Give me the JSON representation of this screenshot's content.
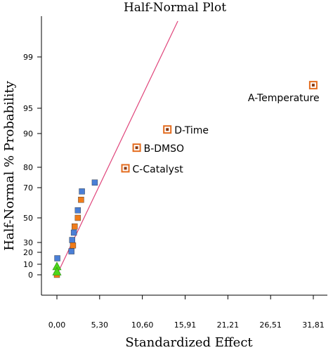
{
  "chart_data": {
    "type": "scatter",
    "title": "Half-Normal Plot",
    "xlabel": "Standardized Effect",
    "ylabel": "Half-Normal % Probability",
    "xlim": [
      -1.5,
      33.5
    ],
    "x_ticks": [
      "0,00",
      "5,30",
      "10,60",
      "15,91",
      "21,21",
      "26,51",
      "31,81"
    ],
    "x_tick_values": [
      0,
      5.3,
      10.6,
      15.91,
      21.21,
      26.51,
      31.81
    ],
    "y_scale": "half-normal probability",
    "y_ticks": [
      "0",
      "10",
      "20",
      "30",
      "50",
      "70",
      "80",
      "90",
      "95",
      "99"
    ],
    "y_tick_values": [
      0,
      10,
      20,
      30,
      50,
      70,
      80,
      90,
      95,
      99
    ],
    "series": [
      {
        "marker": "labeled-square",
        "color": "#e46c1e",
        "points": [
          {
            "x": 31.8,
            "y": 96.8,
            "label": "A-Temperature"
          },
          {
            "x": 13.7,
            "y": 90.8,
            "label": "D-Time"
          },
          {
            "x": 9.9,
            "y": 85.8,
            "label": "B-DMSO"
          },
          {
            "x": 8.5,
            "y": 79.5,
            "label": "C-Catalyst"
          }
        ]
      },
      {
        "marker": "square",
        "color": "#4a7fd6",
        "points": [
          {
            "x": 4.7,
            "y": 72.5
          },
          {
            "x": 3.1,
            "y": 67.5
          },
          {
            "x": 2.6,
            "y": 55
          },
          {
            "x": 2.1,
            "y": 38
          },
          {
            "x": 1.9,
            "y": 32
          },
          {
            "x": 1.8,
            "y": 21
          },
          {
            "x": 0.05,
            "y": 15
          }
        ]
      },
      {
        "marker": "square",
        "color": "#f07c1a",
        "points": [
          {
            "x": 3.0,
            "y": 62
          },
          {
            "x": 2.6,
            "y": 50
          },
          {
            "x": 2.2,
            "y": 43
          },
          {
            "x": 2.0,
            "y": 27
          },
          {
            "x": 0.0,
            "y": 0
          }
        ]
      },
      {
        "marker": "triangle",
        "color": "#4dd61a",
        "points": [
          {
            "x": 0.0,
            "y": 8
          },
          {
            "x": 0.0,
            "y": 3
          }
        ]
      }
    ],
    "reference_line": {
      "color": "#e0457b",
      "from": {
        "x": 0.0,
        "y": 0
      },
      "to": {
        "x": 15.0,
        "y": 99.9
      }
    },
    "grid": false,
    "legend": "none"
  }
}
